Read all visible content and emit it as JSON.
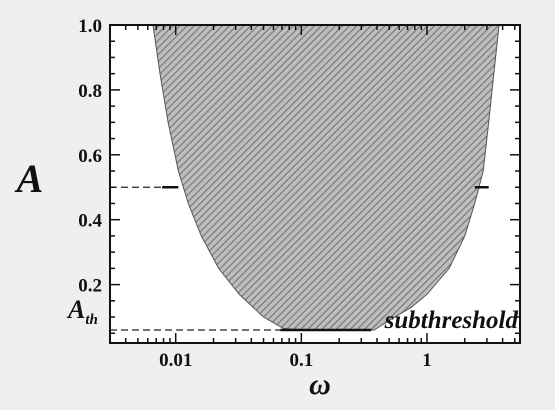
{
  "chart_data": {
    "type": "area",
    "x_scale": "log",
    "xlim": [
      0.003,
      5.5
    ],
    "ylim": [
      0.02,
      1.0
    ],
    "x_ticks": [
      0.01,
      0.1,
      1
    ],
    "x_tick_labels": [
      "0.01",
      "0.1",
      "1"
    ],
    "y_ticks": [
      0.2,
      0.4,
      0.6,
      0.8,
      1.0
    ],
    "y_tick_labels": [
      "0.2",
      "0.4",
      "0.6",
      "0.8",
      "1.0"
    ],
    "xlabel": "ω",
    "ylabel": "A",
    "grid": false,
    "region": {
      "fill": "hatched gray",
      "left_boundary": [
        {
          "x": 0.0066,
          "y": 1.0
        },
        {
          "x": 0.0075,
          "y": 0.85
        },
        {
          "x": 0.0087,
          "y": 0.7
        },
        {
          "x": 0.0105,
          "y": 0.55
        },
        {
          "x": 0.0126,
          "y": 0.45
        },
        {
          "x": 0.016,
          "y": 0.35
        },
        {
          "x": 0.022,
          "y": 0.25
        },
        {
          "x": 0.032,
          "y": 0.17
        },
        {
          "x": 0.05,
          "y": 0.1
        },
        {
          "x": 0.072,
          "y": 0.065
        },
        {
          "x": 0.1,
          "y": 0.06
        }
      ],
      "right_boundary": [
        {
          "x": 0.38,
          "y": 0.06
        },
        {
          "x": 0.5,
          "y": 0.09
        },
        {
          "x": 0.75,
          "y": 0.13
        },
        {
          "x": 1.0,
          "y": 0.17
        },
        {
          "x": 1.5,
          "y": 0.25
        },
        {
          "x": 2.0,
          "y": 0.35
        },
        {
          "x": 2.4,
          "y": 0.45
        },
        {
          "x": 2.8,
          "y": 0.55
        },
        {
          "x": 3.1,
          "y": 0.7
        },
        {
          "x": 3.4,
          "y": 0.85
        },
        {
          "x": 3.75,
          "y": 1.0
        }
      ]
    },
    "levels": [
      {
        "label": "",
        "y": 0.5,
        "segments": [
          [
            0.0078,
            0.0105
          ],
          [
            2.4,
            3.1
          ]
        ],
        "dashed_from_axis_to": 0.0078
      },
      {
        "label": "A_th",
        "y": 0.06,
        "segments": [
          [
            0.068,
            0.36
          ]
        ],
        "dashed_from_axis_to": 0.068
      }
    ],
    "annotations": [
      "subthreshold"
    ]
  }
}
